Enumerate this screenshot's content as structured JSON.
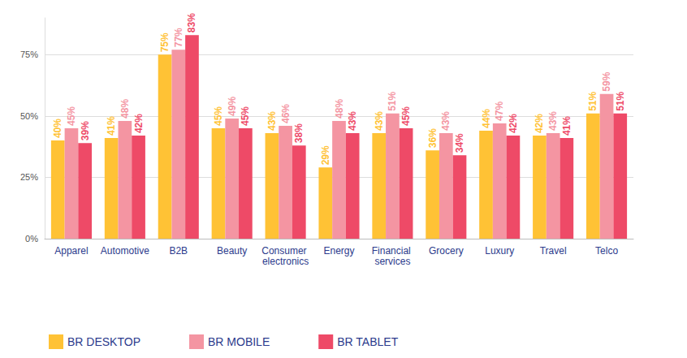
{
  "chart_data": {
    "type": "bar",
    "categories": [
      "Apparel",
      "Automotive",
      "B2B",
      "Beauty",
      "Consumer electronics",
      "Energy",
      "Financial services",
      "Grocery",
      "Luxury",
      "Travel",
      "Telco"
    ],
    "series": [
      {
        "name": "BR DESKTOP",
        "color": "#FFC235",
        "values": [
          40,
          41,
          75,
          45,
          43,
          29,
          43,
          36,
          44,
          42,
          51
        ],
        "value_labels": [
          "40%",
          "41%",
          "75%",
          "45%",
          "43%",
          "29%",
          "43%",
          "36%",
          "44%",
          "42%",
          "51%"
        ]
      },
      {
        "name": "BR MOBILE",
        "color": "#F495A2",
        "values": [
          45,
          48,
          77,
          49,
          46,
          48,
          51,
          43,
          47,
          43,
          59
        ],
        "value_labels": [
          "45%",
          "48%",
          "77%",
          "49%",
          "46%",
          "48%",
          "51%",
          "43%",
          "47%",
          "43%",
          "59%"
        ]
      },
      {
        "name": "BR TABLET",
        "color": "#EE4A67",
        "values": [
          39,
          42,
          83,
          45,
          38,
          43,
          45,
          34,
          42,
          41,
          51
        ],
        "value_labels": [
          "39%",
          "42%",
          "83%",
          "45%",
          "38%",
          "43%",
          "45%",
          "34%",
          "42%",
          "41%",
          "51%"
        ]
      }
    ],
    "ylim": [
      0,
      90
    ],
    "yticks": [
      {
        "value": 0,
        "label": "0%"
      },
      {
        "value": 25,
        "label": "25%"
      },
      {
        "value": 50,
        "label": "50%"
      },
      {
        "value": 75,
        "label": "75%"
      }
    ],
    "grid": true,
    "legend": "bottom-left",
    "data_labels": true
  }
}
